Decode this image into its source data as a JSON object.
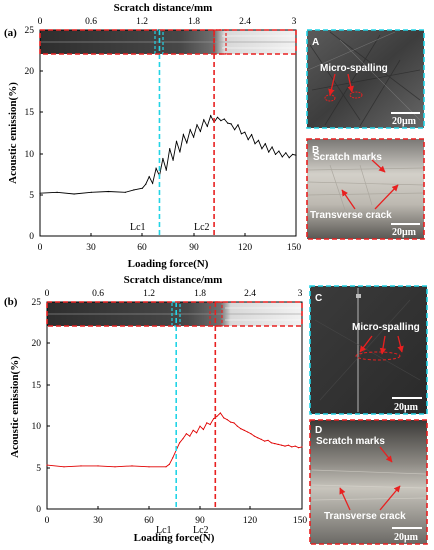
{
  "chart_data": [
    {
      "type": "line",
      "panel_label": "(a)",
      "xlabel": "Loading force(N)",
      "ylabel": "Acoustic emission(%)",
      "top_axis_label": "Scratch distance/mm",
      "xlim": [
        0,
        150
      ],
      "ylim": [
        0,
        25
      ],
      "top_xlim": [
        0,
        3
      ],
      "x_ticks": [
        0,
        30,
        60,
        90,
        120,
        150
      ],
      "y_ticks": [
        0,
        5,
        10,
        15,
        20,
        25
      ],
      "top_ticks": [
        "0",
        "0.6",
        "1.2",
        "1.8",
        "2.4",
        "3"
      ],
      "series": [
        {
          "color": "#000000",
          "x": [
            0,
            10,
            20,
            30,
            40,
            50,
            55,
            60,
            62,
            64,
            66,
            68,
            70,
            72,
            74,
            76,
            78,
            80,
            82,
            84,
            86,
            88,
            90,
            92,
            94,
            96,
            98,
            100,
            102,
            104,
            106,
            108,
            110,
            112,
            114,
            116,
            118,
            120,
            122,
            124,
            126,
            128,
            130,
            132,
            134,
            136,
            138,
            140,
            142,
            144,
            146,
            148,
            150
          ],
          "values": [
            5.2,
            5.3,
            5.1,
            5.3,
            5.4,
            5.3,
            5.6,
            5.8,
            6.3,
            7.2,
            6.4,
            8.2,
            7.3,
            9.4,
            8.0,
            10.6,
            9.2,
            11.5,
            10.2,
            12.3,
            11.3,
            12.9,
            12.0,
            13.5,
            12.7,
            14.1,
            13.3,
            14.6,
            13.8,
            14.4,
            14.0,
            14.2,
            13.7,
            13.6,
            12.9,
            13.5,
            12.4,
            12.6,
            11.7,
            12.3,
            11.2,
            11.6,
            10.6,
            11.2,
            10.2,
            10.8,
            9.9,
            10.3,
            9.6,
            10.1,
            9.5,
            9.9,
            9.8
          ]
        }
      ],
      "lc1": {
        "label": "Lc1",
        "x": 70
      },
      "lc2": {
        "label": "Lc2",
        "x": 102
      },
      "insets": [
        {
          "letter": "A",
          "annotations": [
            "Micro-spalling"
          ],
          "scale": "20μm"
        },
        {
          "letter": "B",
          "annotations": [
            "Scratch marks",
            "Transverse crack"
          ],
          "scale": "20μm"
        }
      ]
    },
    {
      "type": "line",
      "panel_label": "(b)",
      "xlabel": "Loading force(N)",
      "ylabel": "Acoustic emission(%)",
      "top_axis_label": "Scratch distance/mm",
      "xlim": [
        0,
        150
      ],
      "ylim": [
        0,
        25
      ],
      "top_xlim": [
        0,
        3
      ],
      "x_ticks": [
        0,
        30,
        60,
        90,
        120,
        150
      ],
      "y_ticks": [
        0,
        5,
        10,
        15,
        20,
        25
      ],
      "top_ticks": [
        "0",
        "0.6",
        "1.2",
        "1.8",
        "2.4",
        "3"
      ],
      "series": [
        {
          "color": "#e00000",
          "x": [
            0,
            10,
            20,
            30,
            40,
            50,
            60,
            70,
            72,
            74,
            76,
            78,
            80,
            82,
            84,
            86,
            88,
            90,
            92,
            94,
            96,
            98,
            100,
            102,
            104,
            106,
            108,
            110,
            112,
            114,
            116,
            118,
            120,
            122,
            124,
            126,
            128,
            130,
            132,
            134,
            136,
            138,
            140,
            142,
            144,
            146,
            148,
            150
          ],
          "values": [
            5.3,
            5.1,
            5.2,
            5.2,
            5.1,
            5.2,
            5.1,
            5.1,
            5.4,
            6.2,
            7.1,
            8.0,
            8.5,
            9.1,
            8.8,
            9.5,
            9.2,
            10.0,
            9.6,
            10.4,
            10.2,
            10.9,
            11.2,
            11.6,
            11.0,
            10.8,
            10.5,
            10.4,
            10.0,
            9.7,
            9.5,
            9.3,
            9.1,
            8.8,
            8.6,
            8.4,
            8.2,
            8.3,
            8.0,
            7.9,
            7.8,
            7.7,
            7.6,
            7.7,
            7.5,
            7.6,
            7.4,
            7.5
          ]
        }
      ],
      "lc1": {
        "label": "Lc1",
        "x": 76
      },
      "lc2": {
        "label": "Lc2",
        "x": 99
      },
      "insets": [
        {
          "letter": "C",
          "annotations": [
            "Micro-spalling"
          ],
          "scale": "20μm"
        },
        {
          "letter": "D",
          "annotations": [
            "Scratch marks",
            "Transverse crack"
          ],
          "scale": "20μm"
        }
      ]
    }
  ]
}
